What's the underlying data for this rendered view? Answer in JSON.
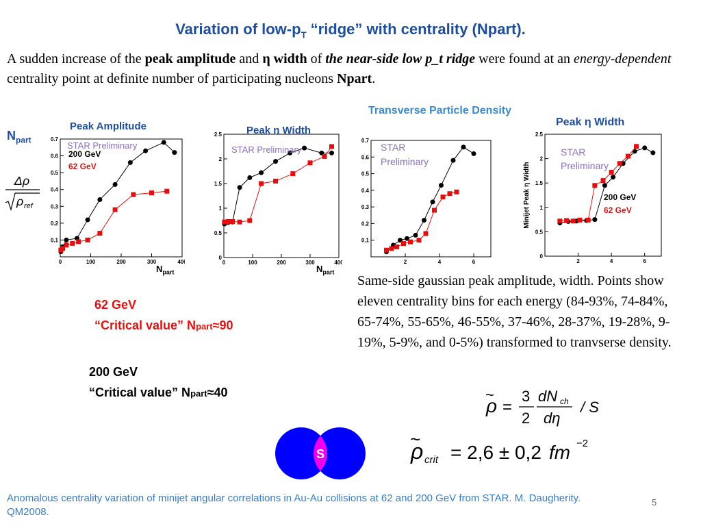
{
  "title": {
    "pre": "Variation of low-p",
    "sub": "T",
    "post": " “ridge” with centrality (Npart)."
  },
  "intro": {
    "t1": "A sudden increase of the ",
    "b1": "peak amplitude",
    "t2": " and ",
    "b2": "η width",
    "t3": " of ",
    "bi1": "the near-side low p_t ridge",
    "t4": " were found  at an ",
    "i1": "energy-dependent",
    "t5": " centrality point at definite number of participating nucleons ",
    "b3": "Npart",
    "t6": "."
  },
  "labels": {
    "npart_main": "N",
    "npart_sub": "part",
    "peak_amplitude": "Peak Amplitude",
    "peak_eta_width_1": "Peak η Width",
    "transverse_density": "Transverse Particle Density",
    "peak_eta_width_2": "Peak η Width",
    "axis_npart": "N",
    "axis_part": "part",
    "rho_fraction_num": "Δρ",
    "rho_fraction_den": "ρ",
    "rho_fraction_den_sub": "ref"
  },
  "legend": {
    "star_prelim_1": "STAR Preliminary",
    "star_prelim_2": "STAR Preliminary",
    "star_3": "STAR",
    "prelim_3": "Preliminary",
    "star_4": "STAR",
    "prelim_4": "Preliminary",
    "gev200": "200 GeV",
    "gev62": "62 GeV",
    "ylabel_4": "Minijet Peak η Width"
  },
  "critical": {
    "e62": "62 GeV",
    "e62_pre": "“Critical value” N",
    "e62_sub": "part",
    "e62_post": "≈90",
    "e200": "200 GeV",
    "e200_pre": "“Critical value” N",
    "e200_sub": "part",
    "e200_post": "≈40"
  },
  "description": "Same-side gaussian peak amplitude,  width. Points show eleven centrality bins for each energy (84-93%, 74-84%, 65-74%, 55-65%, 46-55%, 37-46%, 28-37%, 19-28%, 9-19%, 5-9%, and 0-5%) transformed to tranvserse density.",
  "formula1": {
    "lhs": "ρ",
    "eq": "=",
    "num3": "3",
    "den2": "2",
    "dN": "dN",
    "ch": "ch",
    "deta": "dη",
    "divS": "/ S"
  },
  "formula2": {
    "lhs": "ρ",
    "sub": "crit",
    "rhs": "= 2,6 ± 0,2",
    "unit": "fm",
    "exp": "−2"
  },
  "venn": {
    "label": "S",
    "colors": {
      "circle": "#0000ff",
      "overlap": "#ee00ee"
    }
  },
  "footer": "Anomalous centrality variation of minijet angular correlations in Au-Au collisions at 62 and 200 GeV from STAR. M. Daugherity. QM2008.",
  "page_number": "5",
  "colors": {
    "title": "#1f4e9a",
    "red_series": "#e01010",
    "black_series": "#000000",
    "footer": "#3a7cc4"
  },
  "chart_data": [
    {
      "type": "line",
      "title": "Peak Amplitude",
      "xlabel": "Npart",
      "xlim": [
        0,
        400
      ],
      "ylim": [
        0,
        0.7
      ],
      "xticks": [
        "0",
        "100",
        "200",
        "300",
        "400"
      ],
      "yticks": [
        "0.1",
        "0.2",
        "0.3",
        "0.4",
        "0.5",
        "0.6",
        "0.7"
      ],
      "series": [
        {
          "name": "200 GeV",
          "color": "#000000",
          "x": [
            2,
            8,
            20,
            55,
            90,
            130,
            180,
            230,
            280,
            340,
            375
          ],
          "y": [
            0.03,
            0.06,
            0.1,
            0.11,
            0.22,
            0.34,
            0.43,
            0.56,
            0.63,
            0.68,
            0.62
          ]
        },
        {
          "name": "62 GeV",
          "color": "#e01010",
          "x": [
            2,
            8,
            20,
            40,
            60,
            90,
            130,
            180,
            240,
            300,
            350
          ],
          "y": [
            0.04,
            0.05,
            0.07,
            0.08,
            0.09,
            0.1,
            0.14,
            0.28,
            0.37,
            0.38,
            0.39
          ]
        }
      ]
    },
    {
      "type": "line",
      "title": "Peak η Width",
      "xlabel": "Npart",
      "xlim": [
        0,
        400
      ],
      "ylim": [
        0,
        2.5
      ],
      "xticks": [
        "0",
        "100",
        "200",
        "300",
        "400"
      ],
      "yticks": [
        "0",
        "0.5",
        "1",
        "1.5",
        "2",
        "2.5"
      ],
      "series": [
        {
          "name": "200 GeV",
          "color": "#000000",
          "x": [
            2,
            15,
            30,
            55,
            90,
            130,
            180,
            230,
            280,
            340,
            375
          ],
          "y": [
            0.68,
            0.71,
            0.72,
            1.42,
            1.62,
            1.72,
            1.95,
            2.12,
            2.22,
            2.12,
            2.12
          ]
        },
        {
          "name": "62 GeV",
          "color": "#e01010",
          "x": [
            2,
            15,
            30,
            55,
            90,
            130,
            180,
            240,
            300,
            350,
            375
          ],
          "y": [
            0.72,
            0.73,
            0.73,
            0.72,
            0.75,
            1.5,
            1.55,
            1.7,
            1.92,
            2.05,
            2.25
          ]
        }
      ]
    },
    {
      "type": "line",
      "title": "Transverse Particle Density",
      "xlim": [
        0,
        7
      ],
      "ylim": [
        0,
        0.7
      ],
      "xticks": [
        "2",
        "4",
        "6"
      ],
      "yticks": [
        "0.1",
        "0.2",
        "0.3",
        "0.4",
        "0.5",
        "0.6",
        "0.7"
      ],
      "series": [
        {
          "name": "200 GeV",
          "color": "#000000",
          "x": [
            0.9,
            1.3,
            1.7,
            2.1,
            2.6,
            3.1,
            3.6,
            4.1,
            4.8,
            5.4,
            6.0
          ],
          "y": [
            0.03,
            0.07,
            0.1,
            0.11,
            0.13,
            0.22,
            0.33,
            0.43,
            0.58,
            0.66,
            0.62
          ]
        },
        {
          "name": "62 GeV",
          "color": "#e01010",
          "x": [
            0.9,
            1.2,
            1.5,
            1.9,
            2.3,
            2.8,
            3.2,
            3.7,
            4.2,
            4.6,
            5.0
          ],
          "y": [
            0.04,
            0.05,
            0.06,
            0.08,
            0.09,
            0.1,
            0.14,
            0.28,
            0.36,
            0.38,
            0.39
          ]
        }
      ]
    },
    {
      "type": "line",
      "title": "Peak η Width",
      "ylabel": "Minijet Peak η Width",
      "xlim": [
        0,
        7
      ],
      "ylim": [
        0,
        2.5
      ],
      "xticks": [
        "2",
        "4",
        "6"
      ],
      "yticks": [
        "0",
        "0.5",
        "1",
        "1.5",
        "2",
        "2.5"
      ],
      "series": [
        {
          "name": "200 GeV",
          "color": "#000000",
          "x": [
            0.9,
            1.4,
            1.9,
            2.5,
            3.0,
            3.6,
            4.1,
            4.7,
            5.4,
            6.0,
            6.5
          ],
          "y": [
            0.68,
            0.71,
            0.72,
            0.73,
            0.75,
            1.45,
            1.62,
            1.9,
            2.15,
            2.22,
            2.12
          ]
        },
        {
          "name": "62 GeV",
          "color": "#e01010",
          "x": [
            0.9,
            1.3,
            1.7,
            2.1,
            2.6,
            3.0,
            3.5,
            4.0,
            4.5,
            5.0,
            5.5
          ],
          "y": [
            0.72,
            0.73,
            0.72,
            0.74,
            0.74,
            1.45,
            1.55,
            1.72,
            1.9,
            2.05,
            2.25
          ]
        }
      ]
    }
  ]
}
